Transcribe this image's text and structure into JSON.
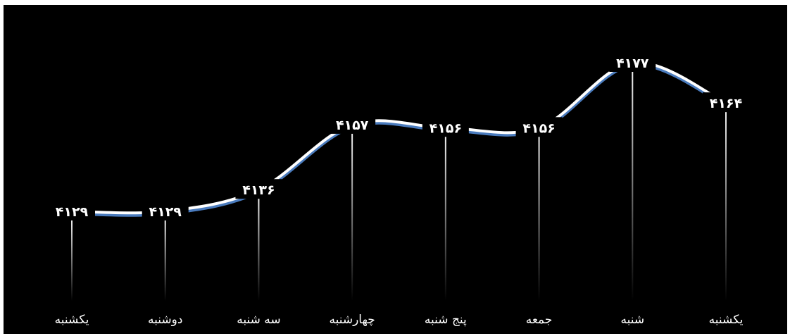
{
  "chart_data": {
    "type": "line",
    "categories": [
      "یکشنبه",
      "دوشنبه",
      "سه شنبه",
      "چهارشنبه",
      "پنج شنبه",
      "جمعه",
      "شنبه",
      "یکشنبه"
    ],
    "values": [
      4129,
      4129,
      4136,
      4157,
      4156,
      4156,
      4177,
      4164
    ],
    "value_labels": [
      "۴۱۲۹",
      "۴۱۲۹",
      "۴۱۳۶",
      "۴۱۵۷",
      "۴۱۵۶",
      "۴۱۵۶",
      "۴۱۷۷",
      "۴۱۶۴"
    ],
    "title": "",
    "xlabel": "",
    "ylabel": "",
    "ylim": [
      4100,
      4185
    ],
    "grid": false,
    "legend": "none",
    "smooth": true
  },
  "colors": {
    "background": "#000000",
    "line": "#ffffff",
    "line_shadow": "#4a7bbd",
    "drop_line": "#ffffff",
    "text": "#ffffff"
  }
}
